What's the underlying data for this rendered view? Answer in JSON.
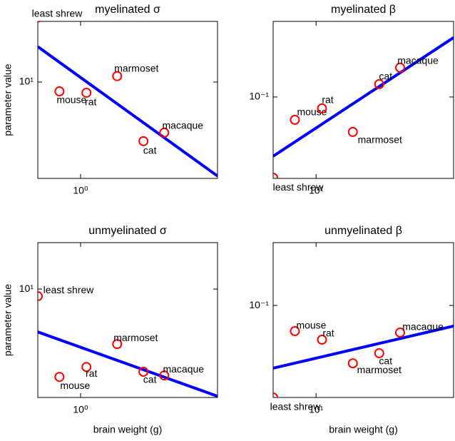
{
  "chart_data": [
    {
      "type": "scatter",
      "title": "myelinated σ",
      "ylabel": "parameter value",
      "log_x": true,
      "log_y": true,
      "labels": [
        "least shrew",
        "mouse",
        "rat",
        "marmoset",
        "cat",
        "macaque"
      ],
      "x": [
        0.5,
        0.71,
        1.1,
        1.81,
        2.77,
        3.88
      ],
      "values": [
        23,
        8.87,
        8.71,
        10.8,
        4.66,
        5.2
      ],
      "color": "#ff0000",
      "fit": {
        "x": [
          0.5,
          9.2
        ],
        "y": [
          15.8,
          2.97
        ],
        "color": "#0000ff"
      },
      "xlim": [
        0.5,
        9.2
      ],
      "xticks": [
        {
          "value": 1,
          "label": "10⁰"
        }
      ],
      "ylim": [
        2.88,
        21.9
      ],
      "yticks": [
        {
          "value": 10,
          "label": "10¹"
        }
      ]
    },
    {
      "type": "scatter",
      "title": "myelinated β",
      "log_x": true,
      "log_y": true,
      "labels": [
        "least shrew",
        "mouse",
        "rat",
        "marmoset",
        "cat",
        "macaque"
      ],
      "x": [
        5,
        7.1,
        11,
        18.1,
        27.7,
        38.8
      ],
      "values": [
        0.0353,
        0.0745,
        0.0863,
        0.0637,
        0.118,
        0.146
      ],
      "color": "#ff0000",
      "fit": {
        "x": [
          5,
          92
        ],
        "y": [
          0.0466,
          0.215
        ],
        "color": "#0000ff"
      },
      "xlim": [
        5,
        92
      ],
      "xticks": [
        {
          "value": 10,
          "label": "10¹"
        }
      ],
      "ylim": [
        0.035,
        0.265
      ],
      "yticks": [
        {
          "value": 0.1,
          "label": "10⁻¹"
        }
      ]
    },
    {
      "type": "scatter",
      "title": "unmyelinated σ",
      "ylabel": "parameter value",
      "xlabel": "brain weight (g)",
      "log_x": true,
      "log_y": true,
      "labels": [
        "least shrew",
        "mouse",
        "rat",
        "marmoset",
        "cat",
        "macaque"
      ],
      "x": [
        0.5,
        0.71,
        1.1,
        1.81,
        2.77,
        3.88
      ],
      "values": [
        9.12,
        3.22,
        3.66,
        4.92,
        3.44,
        3.28
      ],
      "color": "#ff0000",
      "fit": {
        "x": [
          0.5,
          9.2
        ],
        "y": [
          5.75,
          2.51
        ],
        "color": "#0000ff"
      },
      "xlim": [
        0.5,
        9.2
      ],
      "xticks": [
        {
          "value": 1,
          "label": "10⁰"
        }
      ],
      "ylim": [
        2.47,
        18.2
      ],
      "yticks": [
        {
          "value": 10,
          "label": "10¹"
        }
      ]
    },
    {
      "type": "scatter",
      "title": "unmyelinated β",
      "xlabel": "brain weight (g)",
      "log_x": true,
      "log_y": true,
      "labels": [
        "least shrew",
        "mouse",
        "rat",
        "marmoset",
        "cat",
        "macaque"
      ],
      "x": [
        5,
        7.1,
        11,
        18.1,
        27.7,
        38.8
      ],
      "values": [
        0.0305,
        0.0718,
        0.0643,
        0.0474,
        0.054,
        0.0705
      ],
      "color": "#ff0000",
      "fit": {
        "x": [
          5,
          92
        ],
        "y": [
          0.0445,
          0.0766
        ],
        "color": "#0000ff"
      },
      "xlim": [
        5,
        92
      ],
      "xticks": [
        {
          "value": 10,
          "label": "10¹"
        }
      ],
      "ylim": [
        0.0305,
        0.225
      ],
      "yticks": [
        {
          "value": 0.1,
          "label": "10⁻¹"
        }
      ]
    }
  ]
}
